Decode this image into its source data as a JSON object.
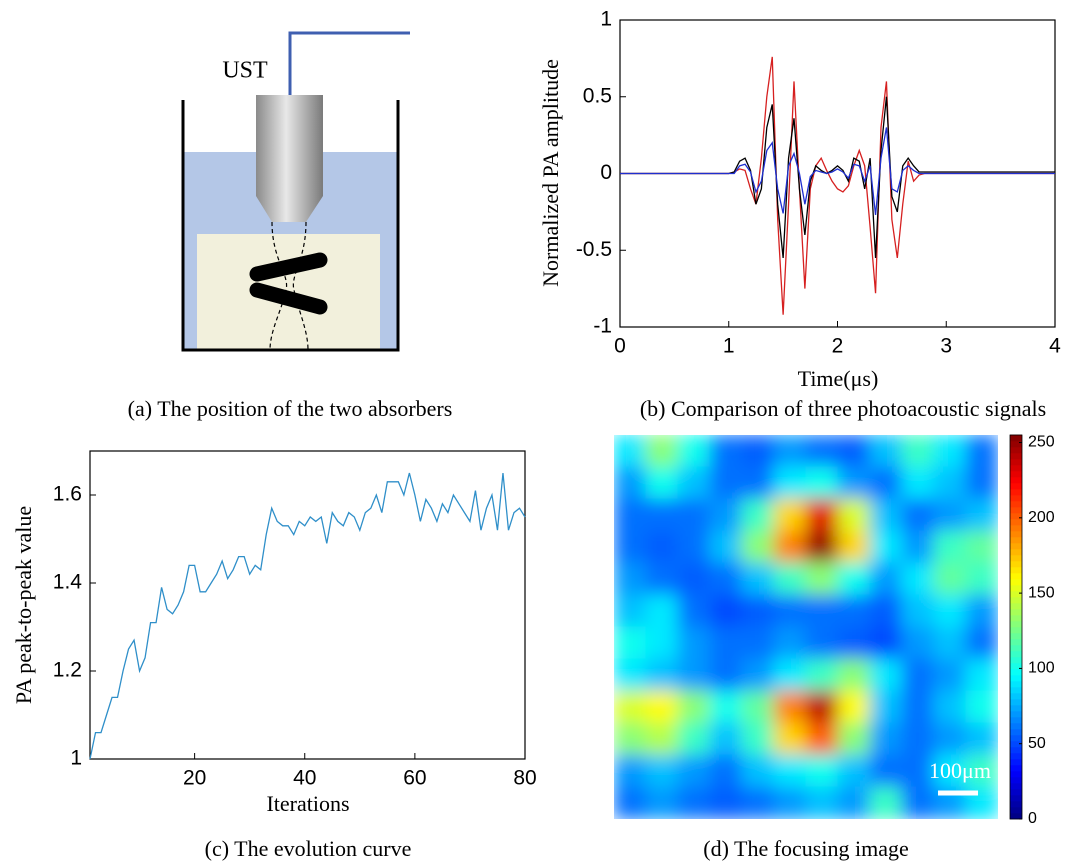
{
  "chart_data": [
    {
      "type": "diagram",
      "label": "UST",
      "caption": "(a) The position of the two absorbers"
    },
    {
      "type": "line",
      "caption": "(b) Comparison of three photoacoustic signals",
      "xlabel": "Time(μs)",
      "ylabel": "Normalized PA amplitude",
      "xlim": [
        0,
        4
      ],
      "ylim": [
        -1,
        1
      ],
      "xticks": [
        0,
        1,
        2,
        3,
        4
      ],
      "yticks": [
        -1,
        -0.5,
        0,
        0.5,
        1
      ],
      "x": [
        0,
        0.5,
        1.0,
        1.05,
        1.1,
        1.15,
        1.2,
        1.25,
        1.3,
        1.35,
        1.4,
        1.45,
        1.5,
        1.55,
        1.6,
        1.65,
        1.7,
        1.75,
        1.8,
        1.85,
        1.9,
        1.95,
        2.0,
        2.05,
        2.1,
        2.15,
        2.2,
        2.25,
        2.3,
        2.35,
        2.4,
        2.45,
        2.5,
        2.55,
        2.6,
        2.65,
        2.7,
        2.75,
        2.8,
        2.85,
        2.9,
        2.95,
        3.0,
        3.5,
        4.0
      ],
      "series": [
        {
          "color": "#d62020",
          "values": [
            0,
            0,
            0,
            0.01,
            0.03,
            0.02,
            -0.1,
            -0.2,
            0.1,
            0.5,
            0.76,
            -0.3,
            -0.92,
            -0.2,
            0.6,
            -0.1,
            -0.75,
            -0.1,
            0.05,
            0.1,
            0.02,
            -0.05,
            -0.1,
            -0.12,
            -0.08,
            0.05,
            0.15,
            0.05,
            -0.35,
            -0.78,
            0.3,
            0.6,
            -0.3,
            -0.55,
            -0.2,
            0.08,
            -0.05,
            -0.01,
            0,
            0,
            0,
            0,
            0,
            0,
            0
          ]
        },
        {
          "color": "#000000",
          "values": [
            0,
            0,
            0,
            0.01,
            0.08,
            0.1,
            0.02,
            -0.2,
            -0.1,
            0.3,
            0.45,
            -0.2,
            -0.55,
            0.1,
            0.36,
            -0.1,
            -0.4,
            -0.05,
            0.05,
            0.02,
            0,
            0.02,
            0.05,
            0.02,
            -0.05,
            0.1,
            0.08,
            -0.1,
            0.1,
            -0.55,
            0.15,
            0.5,
            -0.15,
            -0.25,
            0.05,
            0.1,
            0.05,
            0.01,
            0.01,
            0.01,
            0.01,
            0.01,
            0.01,
            0.01,
            0.01
          ]
        },
        {
          "color": "#1f2fd0",
          "values": [
            0,
            0,
            0,
            0,
            0.05,
            0.06,
            0.01,
            -0.12,
            -0.05,
            0.15,
            0.2,
            -0.1,
            -0.26,
            0.05,
            0.13,
            0,
            -0.2,
            -0.02,
            0.02,
            0.01,
            0,
            0.01,
            0.03,
            0.01,
            -0.03,
            0.06,
            0.05,
            -0.05,
            0.05,
            -0.27,
            0.1,
            0.3,
            -0.1,
            -0.12,
            0.02,
            0.05,
            0.02,
            0,
            0,
            0,
            0,
            0,
            0,
            0,
            0
          ]
        }
      ]
    },
    {
      "type": "line",
      "caption": "(c) The evolution curve",
      "xlabel": "Iterations",
      "ylabel": "PA peak-to-peak value",
      "xlim": [
        1,
        80
      ],
      "ylim": [
        1,
        1.7
      ],
      "xticks": [
        20,
        40,
        60,
        80
      ],
      "yticks": [
        1,
        1.2,
        1.4,
        1.6
      ],
      "x": [
        1,
        2,
        3,
        4,
        5,
        6,
        7,
        8,
        9,
        10,
        11,
        12,
        13,
        14,
        15,
        16,
        17,
        18,
        19,
        20,
        21,
        22,
        23,
        24,
        25,
        26,
        27,
        28,
        29,
        30,
        31,
        32,
        33,
        34,
        35,
        36,
        37,
        38,
        39,
        40,
        41,
        42,
        43,
        44,
        45,
        46,
        47,
        48,
        49,
        50,
        51,
        52,
        53,
        54,
        55,
        56,
        57,
        58,
        59,
        60,
        61,
        62,
        63,
        64,
        65,
        66,
        67,
        68,
        69,
        70,
        71,
        72,
        73,
        74,
        75,
        76,
        77,
        78,
        79,
        80
      ],
      "series": [
        {
          "color": "#2f8fc9",
          "values": [
            1.0,
            1.06,
            1.06,
            1.1,
            1.14,
            1.14,
            1.2,
            1.25,
            1.27,
            1.2,
            1.23,
            1.31,
            1.31,
            1.39,
            1.34,
            1.33,
            1.35,
            1.38,
            1.44,
            1.44,
            1.38,
            1.38,
            1.4,
            1.42,
            1.45,
            1.41,
            1.43,
            1.46,
            1.46,
            1.42,
            1.44,
            1.43,
            1.51,
            1.57,
            1.54,
            1.53,
            1.53,
            1.51,
            1.54,
            1.53,
            1.55,
            1.54,
            1.55,
            1.49,
            1.56,
            1.54,
            1.53,
            1.56,
            1.55,
            1.52,
            1.56,
            1.57,
            1.6,
            1.56,
            1.63,
            1.63,
            1.63,
            1.6,
            1.65,
            1.6,
            1.54,
            1.59,
            1.57,
            1.54,
            1.58,
            1.56,
            1.6,
            1.58,
            1.56,
            1.54,
            1.61,
            1.52,
            1.57,
            1.6,
            1.52,
            1.65,
            1.52,
            1.56,
            1.57,
            1.55
          ]
        }
      ]
    },
    {
      "type": "heatmap",
      "caption": "(d) The focusing image",
      "colormap": "jet",
      "zlim": [
        0,
        255
      ],
      "zticks": [
        0,
        50,
        100,
        150,
        200,
        250
      ],
      "scalebar_label": "100μm",
      "values": [
        [
          90,
          130,
          100,
          60,
          55,
          70,
          60,
          55,
          80,
          110,
          90,
          60
        ],
        [
          70,
          100,
          80,
          60,
          60,
          90,
          100,
          70,
          60,
          90,
          80,
          60
        ],
        [
          60,
          60,
          60,
          70,
          110,
          170,
          230,
          150,
          80,
          60,
          70,
          80
        ],
        [
          60,
          55,
          60,
          80,
          130,
          190,
          250,
          170,
          90,
          70,
          110,
          120
        ],
        [
          70,
          60,
          55,
          60,
          80,
          110,
          130,
          100,
          70,
          90,
          120,
          110
        ],
        [
          80,
          90,
          60,
          50,
          55,
          60,
          60,
          60,
          55,
          80,
          90,
          70
        ],
        [
          100,
          90,
          70,
          60,
          60,
          70,
          60,
          55,
          50,
          70,
          80,
          60
        ],
        [
          90,
          80,
          70,
          60,
          70,
          90,
          110,
          130,
          90,
          60,
          70,
          90
        ],
        [
          150,
          160,
          130,
          100,
          120,
          190,
          240,
          160,
          80,
          60,
          80,
          100
        ],
        [
          130,
          140,
          110,
          80,
          110,
          170,
          200,
          130,
          70,
          60,
          70,
          80
        ],
        [
          70,
          80,
          70,
          60,
          80,
          90,
          100,
          80,
          60,
          60,
          90,
          110
        ],
        [
          60,
          70,
          60,
          55,
          60,
          70,
          80,
          70,
          110,
          60,
          70,
          90
        ]
      ]
    }
  ]
}
